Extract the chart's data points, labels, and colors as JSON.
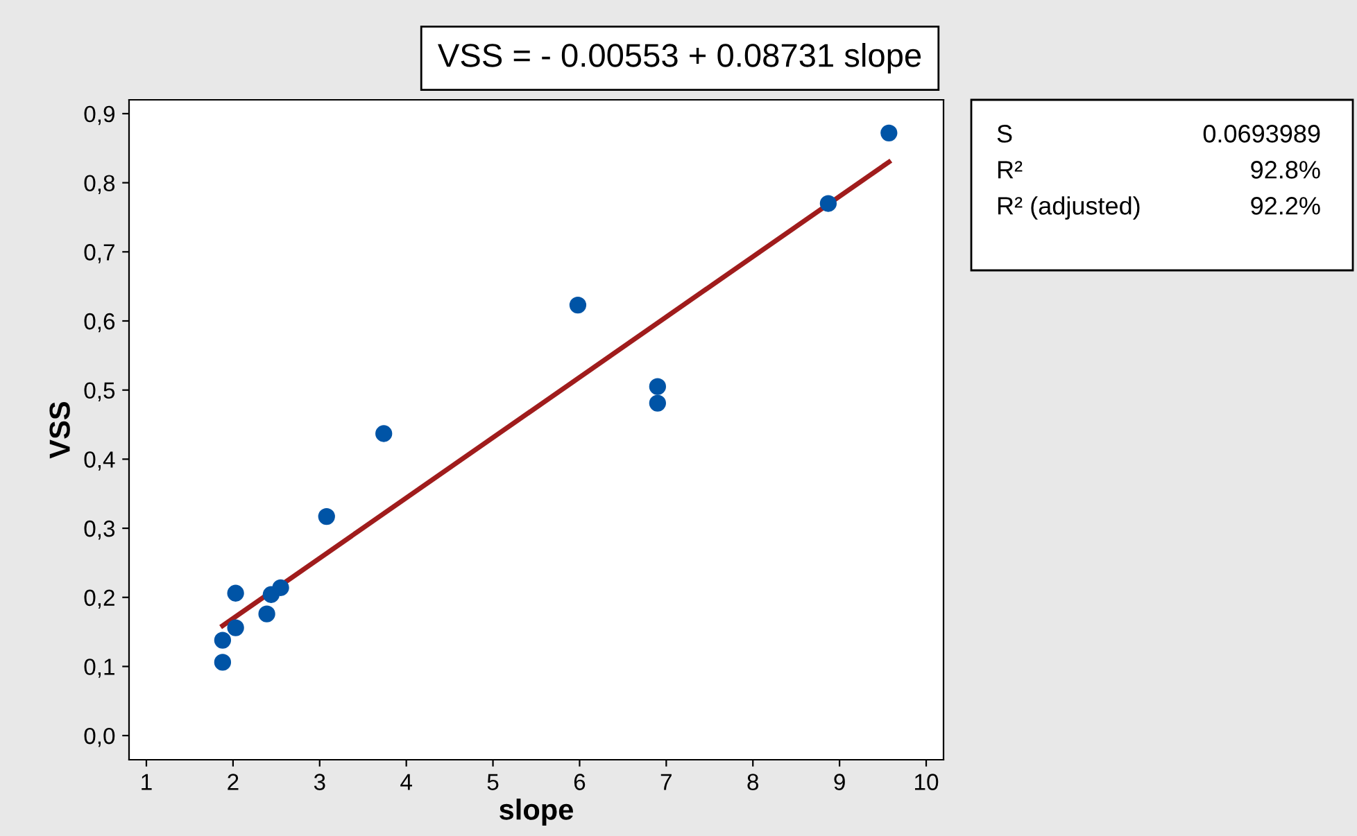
{
  "chart_data": {
    "type": "scatter",
    "title": "VSS = - 0.00553 + 0.08731 slope",
    "xlabel": "slope",
    "ylabel": "VSS",
    "series": [
      {
        "color": "#0054a6",
        "x": [
          1.88,
          1.88,
          2.03,
          2.03,
          2.39,
          2.44,
          2.55,
          3.08,
          3.74,
          5.98,
          6.9,
          6.9,
          8.87,
          9.57
        ],
        "values": [
          0.106,
          0.138,
          0.206,
          0.156,
          0.176,
          0.204,
          0.214,
          0.317,
          0.437,
          0.623,
          0.505,
          0.481,
          0.77,
          0.872
        ],
        "marker": "circle"
      },
      {
        "type": "line",
        "color": "#a01c1c",
        "x": [
          1.88,
          9.57
        ],
        "values": [
          0.159,
          0.83
        ],
        "marker": "none",
        "line_style": "solid"
      }
    ],
    "annotations": [
      "S",
      "0.0693989",
      "R²",
      "92.8%",
      "R² (adjusted)",
      "92.2%"
    ],
    "xlim": [
      0.8,
      10.2
    ],
    "ylim": [
      -0.035,
      0.92
    ],
    "xticks": [
      1,
      2,
      3,
      4,
      5,
      6,
      7,
      8,
      9,
      10
    ],
    "yticks": [
      {
        "value": 0,
        "label": "0,0"
      },
      {
        "value": 0.1,
        "label": "0,1"
      },
      {
        "value": 0.2,
        "label": "0,2"
      },
      {
        "value": 0.3,
        "label": "0,3"
      },
      {
        "value": 0.4,
        "label": "0,4"
      },
      {
        "value": 0.5,
        "label": "0,5"
      },
      {
        "value": 0.6,
        "label": "0,6"
      },
      {
        "value": 0.7,
        "label": "0,7"
      },
      {
        "value": 0.8,
        "label": "0,8"
      },
      {
        "value": 0.9,
        "label": "0,9"
      }
    ],
    "grid": false,
    "legend": false
  }
}
